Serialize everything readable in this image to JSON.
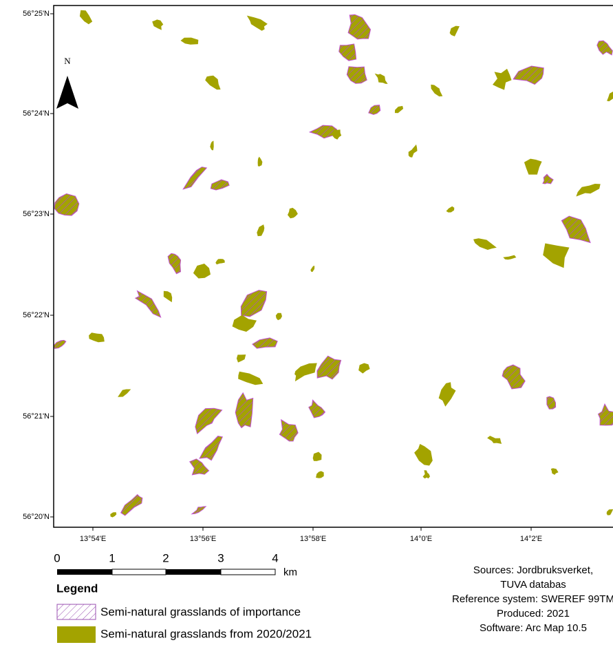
{
  "map": {
    "lat_labels": [
      "56°25'N",
      "56°24'N",
      "56°23'N",
      "56°22'N",
      "56°21'N",
      "56°20'N"
    ],
    "lon_labels": [
      "13°54'E",
      "13°56'E",
      "13°58'E",
      "14°0'E",
      "14°2'E"
    ]
  },
  "north_arrow": "N",
  "scale_bar": {
    "labels": [
      "0",
      "1",
      "2",
      "3",
      "4"
    ],
    "unit": "km"
  },
  "legend": {
    "title": "Legend",
    "items": [
      "Semi-natural grasslands of importance",
      "Semi-natural grasslands from 2020/2021"
    ]
  },
  "credits": [
    "Sources: Jordbruksverket,",
    "TUVA databas",
    "Reference system: SWEREF 99TM",
    "Produced: 2021",
    "Software: Arc Map 10.5"
  ]
}
